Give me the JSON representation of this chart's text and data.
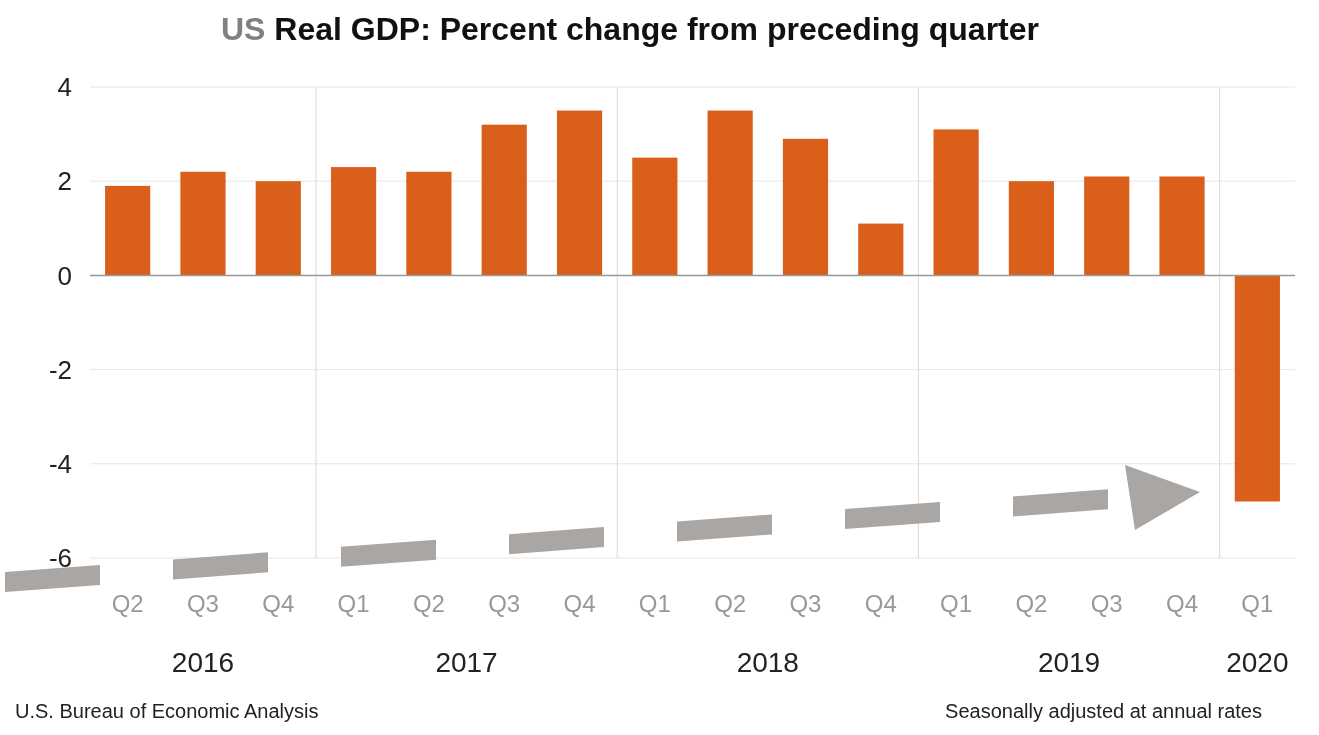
{
  "chart_data": {
    "type": "bar",
    "title": "US Real GDP:  Percent change from preceding quarter",
    "categories": [
      "Q2",
      "Q3",
      "Q4",
      "Q1",
      "Q2",
      "Q3",
      "Q4",
      "Q1",
      "Q2",
      "Q3",
      "Q4",
      "Q1",
      "Q2",
      "Q3",
      "Q4",
      "Q1"
    ],
    "values": [
      1.9,
      2.2,
      2.0,
      2.3,
      2.2,
      3.2,
      3.5,
      2.5,
      3.5,
      2.9,
      1.1,
      3.1,
      2.0,
      2.1,
      2.1,
      -4.8
    ],
    "color": "#d95f1a",
    "ylim": [
      -6,
      4
    ],
    "yticks": [
      -6,
      -4,
      -2,
      0,
      2,
      4
    ],
    "grid": "y",
    "annotations": [
      "2016",
      "2017",
      "2018",
      "2019",
      "2020",
      "U.S. Bureau of Economic Analysis",
      "Seasonally adjusted at annual rates"
    ]
  }
}
